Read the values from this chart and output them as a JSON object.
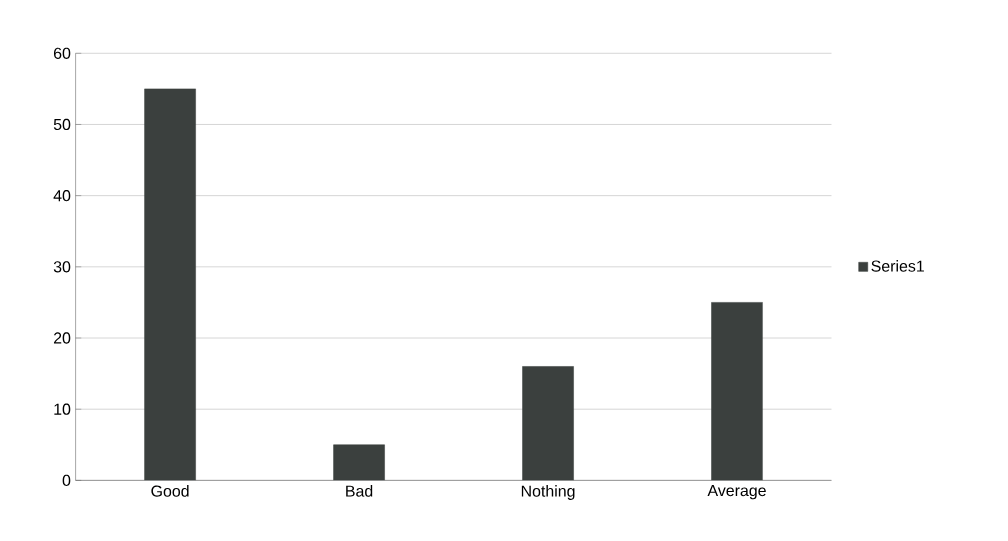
{
  "chart_data": {
    "type": "bar",
    "categories": [
      "Good",
      "Bad",
      "Nothing",
      "Average"
    ],
    "series": [
      {
        "name": "Series1",
        "color": "#3b403e",
        "values": [
          55,
          5,
          16,
          25
        ]
      }
    ],
    "ylim": [
      0,
      60
    ],
    "yticks": [
      0,
      10,
      20,
      30,
      40,
      50,
      60
    ],
    "grid": "y",
    "legend": "right"
  }
}
